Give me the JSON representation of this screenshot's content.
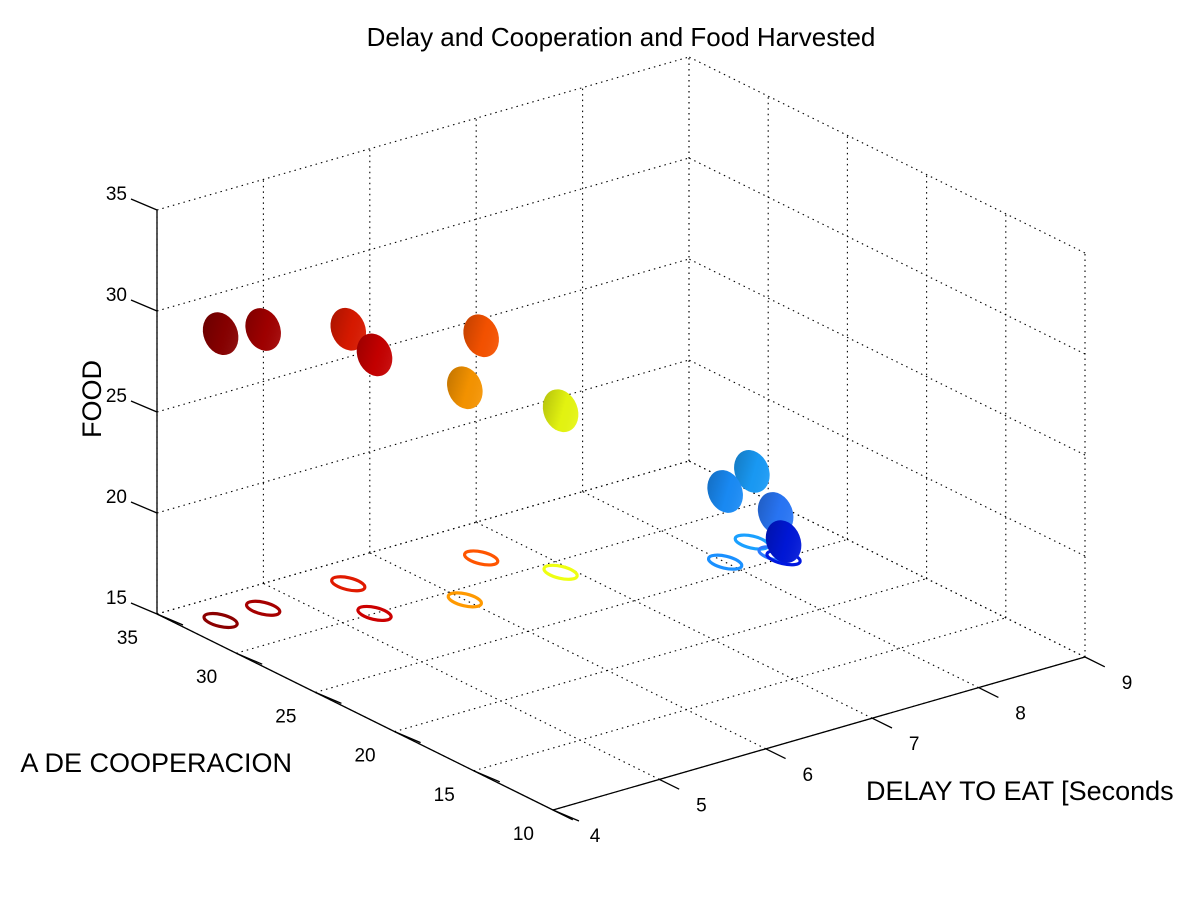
{
  "chart_data": {
    "type": "scatter",
    "title": "Delay and Cooperation and Food Harvested",
    "xlabel": "DELAY TO EAT [Seconds",
    "ylabel": "A DE COOPERACION",
    "zlabel": "FOOD",
    "xlim": [
      4,
      9
    ],
    "ylim": [
      10,
      35
    ],
    "zlim": [
      15,
      35
    ],
    "x_ticks": [
      "4",
      "5",
      "6",
      "7",
      "8",
      "9"
    ],
    "y_ticks": [
      "10",
      "15",
      "20",
      "25",
      "30",
      "35"
    ],
    "z_ticks": [
      "15",
      "20",
      "25",
      "30",
      "35"
    ],
    "grid": true,
    "points": [
      {
        "delay": 4.3,
        "cooperation": 33,
        "food": 29.2,
        "color": "#8c0000"
      },
      {
        "delay": 4.7,
        "cooperation": 33,
        "food": 28.8,
        "color": "#a60000"
      },
      {
        "delay": 5.3,
        "cooperation": 30,
        "food": 27.8,
        "color": "#cc0000"
      },
      {
        "delay": 5.5,
        "cooperation": 33,
        "food": 27.6,
        "color": "#e01a00"
      },
      {
        "delay": 6.0,
        "cooperation": 29,
        "food": 25.5,
        "color": "#ff9900"
      },
      {
        "delay": 6.6,
        "cooperation": 32,
        "food": 26.0,
        "color": "#ff5500"
      },
      {
        "delay": 6.9,
        "cooperation": 29,
        "food": 23.0,
        "color": "#eeff11"
      },
      {
        "delay": 8.0,
        "cooperation": 26,
        "food": 18.5,
        "color": "#1a90ff"
      },
      {
        "delay": 8.4,
        "cooperation": 27,
        "food": 18.5,
        "color": "#1aa0ff"
      },
      {
        "delay": 8.4,
        "cooperation": 25.5,
        "food": 17.0,
        "color": "#2a7aff"
      },
      {
        "delay": 8.4,
        "cooperation": 25,
        "food": 15.8,
        "color": "#0018e0"
      }
    ]
  }
}
